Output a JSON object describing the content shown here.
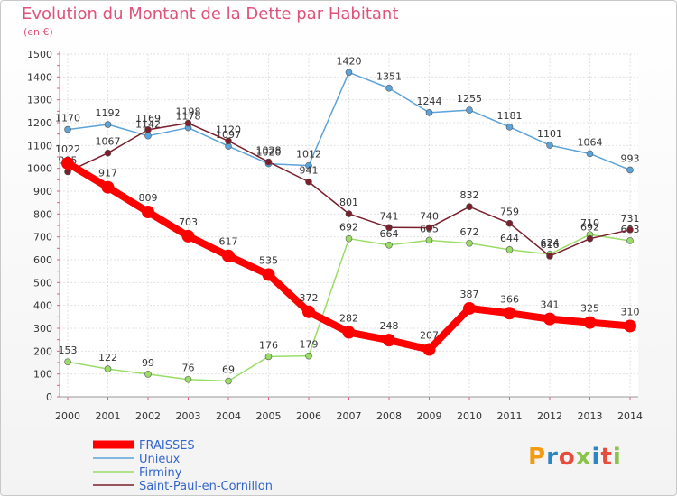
{
  "title": "Evolution du Montant de la Dette par Habitant",
  "unit_label": "(en €)",
  "brand": {
    "text": "Proxiti",
    "colors": [
      "#f39c12",
      "#2e86c1",
      "#e74c3c",
      "#8bc34a",
      "#2e86c1",
      "#e74c3c",
      "#8bc34a"
    ]
  },
  "chart_data": {
    "type": "line",
    "title": "Evolution du Montant de la Dette par Habitant",
    "ylabel": "(en €)",
    "x": [
      "2000",
      "2001",
      "2002",
      "2003",
      "2004",
      "2005",
      "2006",
      "2007",
      "2008",
      "2009",
      "2010",
      "2011",
      "2012",
      "2013",
      "2014"
    ],
    "ylim": [
      0,
      1500
    ],
    "yticks": [
      0,
      100,
      200,
      300,
      400,
      500,
      600,
      700,
      800,
      900,
      1000,
      1100,
      1200,
      1300,
      1400,
      1500
    ],
    "grid": true,
    "legend_position": "bottom-left",
    "series": [
      {
        "name": "FRAISSES",
        "color": "#ff0000",
        "values": [
          1022,
          917,
          809,
          703,
          617,
          535,
          372,
          282,
          248,
          207,
          387,
          366,
          341,
          325,
          310
        ]
      },
      {
        "name": "Unieux",
        "color": "#5ba3d9",
        "values": [
          1170,
          1192,
          1142,
          1178,
          1097,
          1020,
          1012,
          1420,
          1351,
          1244,
          1255,
          1181,
          1101,
          1064,
          993
        ]
      },
      {
        "name": "Firminy",
        "color": "#99dd66",
        "values": [
          153,
          122,
          99,
          76,
          69,
          176,
          179,
          692,
          664,
          685,
          672,
          644,
          624,
          710,
          683
        ]
      },
      {
        "name": "Saint-Paul-en-Cornillon",
        "color": "#7a1f2b",
        "values": [
          985,
          1067,
          1169,
          1198,
          1120,
          1028,
          941,
          801,
          741,
          740,
          832,
          759,
          616,
          692,
          731
        ]
      }
    ]
  }
}
